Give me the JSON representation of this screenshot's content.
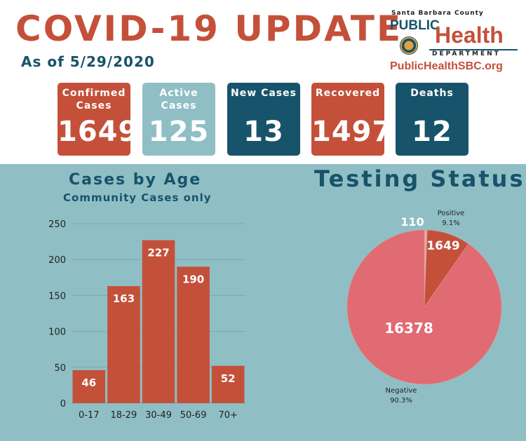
{
  "header": {
    "title": "COVID-19 UPDATE",
    "as_of": "As of 5/29/2020"
  },
  "logo": {
    "county": "Santa Barbara County",
    "public": "PUBLIC",
    "health": "Health",
    "department": "DEPARTMENT",
    "url": "PublicHealthSBC.org"
  },
  "stats": [
    {
      "label": "Confirmed Cases",
      "value": "1649",
      "color": "#c4503a"
    },
    {
      "label": "Active Cases",
      "value": "125",
      "color": "#8fbfc5"
    },
    {
      "label": "New Cases",
      "value": "13",
      "color": "#17536a"
    },
    {
      "label": "Recovered",
      "value": "1497",
      "color": "#c4503a"
    },
    {
      "label": "Deaths",
      "value": "12",
      "color": "#17536a"
    }
  ],
  "colors": {
    "accent_red": "#c4503a",
    "accent_teal": "#8fbfc5",
    "accent_navy": "#17536a",
    "pie_negative": "#e06b72"
  },
  "chart_data": [
    {
      "type": "bar",
      "title": "Cases by Age",
      "subtitle": "Community Cases only",
      "categories": [
        "0-17",
        "18-29",
        "30-49",
        "50-69",
        "70+"
      ],
      "values": [
        46,
        163,
        227,
        190,
        52
      ],
      "ylim": [
        0,
        250
      ],
      "yticks": [
        0,
        50,
        100,
        150,
        200,
        250
      ],
      "grid": true
    },
    {
      "type": "pie",
      "title": "Testing Status",
      "slices": [
        {
          "label": "Positive",
          "value": 1649,
          "percent": "9.1%",
          "color": "#c4503a"
        },
        {
          "label": "Negative",
          "value": 16378,
          "percent": "90.3%",
          "color": "#e06b72"
        },
        {
          "label": "",
          "value": 110,
          "percent": "",
          "color": "#e8a6a0"
        }
      ]
    }
  ]
}
